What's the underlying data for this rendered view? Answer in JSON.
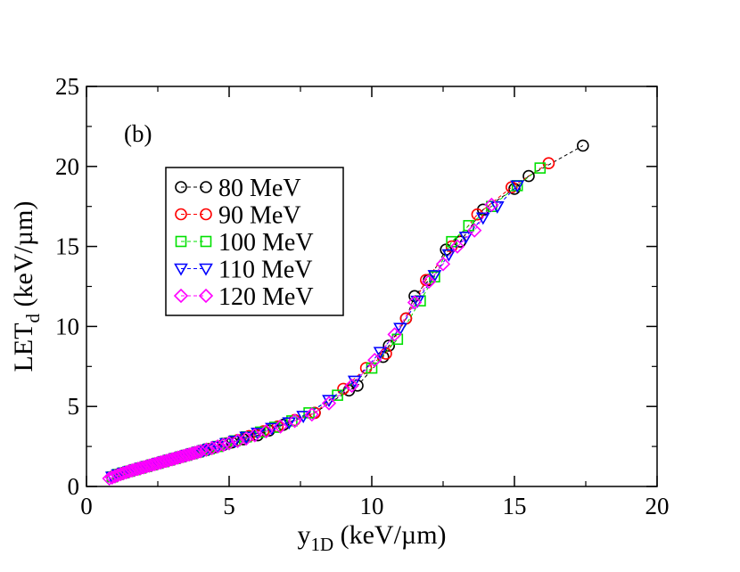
{
  "chart_data": {
    "type": "scatter",
    "panel_label": "(b)",
    "xlabel": {
      "main": "y",
      "sub": "1D",
      "rest": " (keV/µm)"
    },
    "ylabel": {
      "main": "LET",
      "sub": "d",
      "rest": " (keV/µm)"
    },
    "xlim": [
      0,
      20
    ],
    "ylim": [
      0,
      25
    ],
    "x_ticks": [
      0,
      5,
      10,
      15,
      20
    ],
    "y_ticks": [
      0,
      5,
      10,
      15,
      20,
      25
    ],
    "x_minor_step": 2.5,
    "y_minor_step": 2.5,
    "legend_position": "upper-left",
    "series": [
      {
        "name": "80 MeV",
        "color": "#000000",
        "marker": "circle",
        "x": [
          0.9,
          1.1,
          1.3,
          1.5,
          1.7,
          1.9,
          2.1,
          2.3,
          2.5,
          2.7,
          2.9,
          3.1,
          3.3,
          3.5,
          3.7,
          3.9,
          4.1,
          4.3,
          4.5,
          4.8,
          5.1,
          5.5,
          6.0,
          6.4,
          6.9,
          8.0,
          9.2,
          9.5,
          10.4,
          10.6,
          11.2,
          11.5,
          12.0,
          12.6,
          13.1,
          13.9,
          15.0,
          15.5,
          17.4
        ],
        "y": [
          0.6,
          0.75,
          0.85,
          0.95,
          1.05,
          1.15,
          1.25,
          1.35,
          1.45,
          1.55,
          1.65,
          1.75,
          1.85,
          1.95,
          2.05,
          2.15,
          2.25,
          2.35,
          2.45,
          2.6,
          2.75,
          2.95,
          3.2,
          3.5,
          3.85,
          4.6,
          6.0,
          6.3,
          8.1,
          8.8,
          10.5,
          11.9,
          12.9,
          14.8,
          15.3,
          17.3,
          18.6,
          19.4,
          21.3
        ]
      },
      {
        "name": "90 MeV",
        "color": "#ff0000",
        "marker": "circle",
        "x": [
          0.9,
          1.1,
          1.3,
          1.5,
          1.7,
          1.9,
          2.1,
          2.3,
          2.5,
          2.7,
          2.9,
          3.1,
          3.3,
          3.5,
          3.7,
          3.9,
          4.1,
          4.3,
          4.6,
          4.9,
          5.3,
          5.7,
          6.2,
          6.7,
          7.3,
          8.0,
          9.0,
          9.8,
          10.5,
          11.2,
          11.9,
          12.8,
          13.7,
          14.9,
          16.2
        ],
        "y": [
          0.6,
          0.75,
          0.85,
          0.95,
          1.05,
          1.15,
          1.25,
          1.35,
          1.45,
          1.55,
          1.65,
          1.75,
          1.85,
          1.95,
          2.05,
          2.15,
          2.25,
          2.35,
          2.5,
          2.7,
          2.9,
          3.15,
          3.45,
          3.75,
          4.15,
          4.6,
          6.1,
          7.4,
          8.3,
          10.5,
          12.9,
          15.0,
          17.0,
          18.7,
          20.2
        ]
      },
      {
        "name": "100 MeV",
        "color": "#00e000",
        "marker": "square",
        "x": [
          0.9,
          1.1,
          1.3,
          1.5,
          1.7,
          1.9,
          2.1,
          2.3,
          2.5,
          2.7,
          2.9,
          3.1,
          3.3,
          3.5,
          3.7,
          3.9,
          4.1,
          4.3,
          4.6,
          4.9,
          5.2,
          5.6,
          6.1,
          6.6,
          7.2,
          7.8,
          8.8,
          10.0,
          10.9,
          11.7,
          12.2,
          12.8,
          13.4,
          14.2,
          15.1,
          15.9
        ],
        "y": [
          0.6,
          0.75,
          0.85,
          0.95,
          1.05,
          1.15,
          1.25,
          1.35,
          1.45,
          1.55,
          1.65,
          1.75,
          1.85,
          1.95,
          2.05,
          2.15,
          2.25,
          2.35,
          2.5,
          2.7,
          2.85,
          3.1,
          3.4,
          3.7,
          4.1,
          4.6,
          5.7,
          7.4,
          9.2,
          11.6,
          13.1,
          15.3,
          16.3,
          17.5,
          18.8,
          19.9
        ]
      },
      {
        "name": "110 MeV",
        "color": "#0000ff",
        "marker": "triangle-down",
        "x": [
          0.9,
          1.1,
          1.3,
          1.5,
          1.7,
          1.9,
          2.1,
          2.3,
          2.5,
          2.7,
          2.9,
          3.1,
          3.3,
          3.5,
          3.7,
          3.9,
          4.1,
          4.3,
          4.6,
          4.9,
          5.2,
          5.6,
          6.0,
          6.5,
          7.1,
          7.6,
          8.5,
          9.4,
          10.3,
          11.0,
          11.6,
          12.2,
          12.7,
          13.3,
          13.9,
          14.4,
          15.1
        ],
        "y": [
          0.6,
          0.75,
          0.85,
          0.95,
          1.05,
          1.15,
          1.25,
          1.35,
          1.45,
          1.55,
          1.65,
          1.75,
          1.85,
          1.95,
          2.05,
          2.15,
          2.25,
          2.35,
          2.5,
          2.7,
          2.85,
          3.1,
          3.35,
          3.65,
          4.0,
          4.4,
          5.4,
          6.6,
          8.4,
          9.9,
          11.6,
          13.2,
          14.5,
          15.6,
          16.8,
          17.5,
          18.8
        ]
      },
      {
        "name": "120 MeV",
        "color": "#ff00ff",
        "marker": "diamond",
        "x": [
          0.8,
          0.9,
          1.0,
          1.1,
          1.2,
          1.3,
          1.4,
          1.5,
          1.6,
          1.7,
          1.8,
          1.9,
          2.0,
          2.1,
          2.2,
          2.3,
          2.4,
          2.5,
          2.6,
          2.7,
          2.8,
          2.9,
          3.0,
          3.1,
          3.2,
          3.3,
          3.4,
          3.5,
          3.6,
          3.7,
          3.8,
          3.9,
          4.0,
          4.2,
          4.4,
          4.6,
          4.8,
          5.0,
          5.3,
          5.6,
          5.9,
          6.3,
          6.8,
          7.3,
          7.9,
          8.5,
          9.3,
          10.1,
          10.8,
          11.5,
          12.0,
          12.5,
          13.0,
          13.6,
          14.2
        ],
        "y": [
          0.5,
          0.56,
          0.63,
          0.7,
          0.77,
          0.83,
          0.89,
          0.95,
          1.0,
          1.05,
          1.1,
          1.15,
          1.2,
          1.25,
          1.3,
          1.35,
          1.4,
          1.45,
          1.5,
          1.55,
          1.6,
          1.65,
          1.7,
          1.75,
          1.8,
          1.85,
          1.9,
          1.95,
          2.0,
          2.05,
          2.1,
          2.15,
          2.2,
          2.3,
          2.4,
          2.5,
          2.6,
          2.7,
          2.85,
          3.0,
          3.2,
          3.45,
          3.75,
          4.1,
          4.5,
          5.2,
          6.3,
          7.9,
          9.5,
          11.5,
          12.8,
          13.9,
          15.0,
          16.0,
          17.6
        ]
      }
    ]
  }
}
